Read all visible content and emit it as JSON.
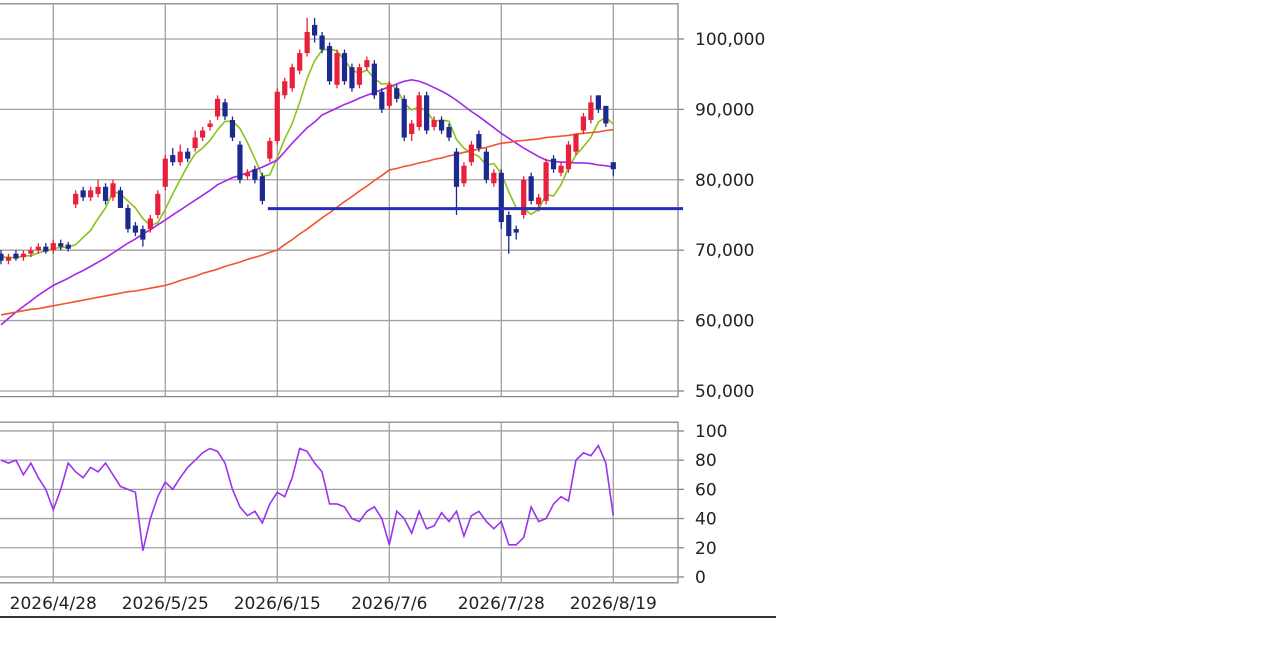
{
  "chart_data": [
    {
      "type": "candlestick",
      "categories": [
        null,
        null,
        null,
        null,
        null,
        null,
        null,
        "2026/4/28",
        null,
        null,
        null,
        null,
        null,
        null,
        null,
        null,
        null,
        null,
        null,
        null,
        null,
        null,
        "2026/5/25",
        null,
        null,
        null,
        null,
        null,
        null,
        null,
        null,
        null,
        null,
        null,
        null,
        null,
        null,
        "2026/6/15",
        null,
        null,
        null,
        null,
        null,
        null,
        null,
        null,
        null,
        null,
        null,
        null,
        null,
        null,
        "2026/7/6",
        null,
        null,
        null,
        null,
        null,
        null,
        null,
        null,
        null,
        null,
        null,
        null,
        null,
        null,
        "2026/7/28",
        null,
        null,
        null,
        null,
        null,
        null,
        null,
        null,
        null,
        null,
        null,
        null,
        null,
        null,
        "2026/8/19"
      ],
      "open": [
        69500,
        68500,
        69500,
        69000,
        69500,
        70000,
        70500,
        70000,
        71000,
        70800,
        76500,
        78500,
        77500,
        78000,
        79000,
        77500,
        78500,
        76000,
        73500,
        73000,
        73000,
        75000,
        79000,
        83500,
        82500,
        84000,
        84500,
        86000,
        87500,
        89000,
        91000,
        88500,
        85000,
        80500,
        81500,
        80500,
        83000,
        85500,
        92000,
        93000,
        95500,
        98000,
        102000,
        100500,
        99000,
        93500,
        98000,
        96000,
        93500,
        96000,
        96500,
        92500,
        90500,
        93000,
        91500,
        86500,
        87500,
        92000,
        87500,
        88500,
        87500,
        84000,
        79500,
        82500,
        86500,
        84000,
        79500,
        81000,
        75000,
        73000,
        75000,
        80500,
        76500,
        77000,
        83000,
        81000,
        81500,
        84000,
        87000,
        88500,
        92000,
        90500,
        82500
      ],
      "high": [
        70000,
        69500,
        70000,
        70000,
        70500,
        71000,
        71000,
        71500,
        71500,
        71200,
        78500,
        79000,
        79000,
        80000,
        79500,
        80000,
        79000,
        76500,
        74000,
        73500,
        75000,
        78500,
        83500,
        84500,
        85000,
        84500,
        87000,
        87500,
        88500,
        92000,
        91500,
        89000,
        85500,
        81500,
        82000,
        81000,
        86000,
        93000,
        94500,
        96500,
        98500,
        103000,
        103000,
        101000,
        99500,
        98500,
        98500,
        96500,
        96500,
        97500,
        97000,
        93000,
        94000,
        93500,
        92000,
        88500,
        92500,
        92500,
        89000,
        89000,
        88000,
        84500,
        82500,
        85500,
        87000,
        84500,
        81500,
        81500,
        75500,
        73500,
        80500,
        81000,
        78000,
        83000,
        83500,
        82500,
        85500,
        86500,
        89500,
        92000,
        92000,
        90500,
        82500
      ],
      "low": [
        68000,
        68000,
        68500,
        68500,
        69000,
        69500,
        69500,
        69500,
        70000,
        69800,
        76000,
        77000,
        77000,
        77500,
        76500,
        77000,
        76000,
        72500,
        72000,
        70500,
        72500,
        74500,
        78500,
        82000,
        82000,
        82500,
        84000,
        85500,
        87000,
        88500,
        88500,
        85500,
        79500,
        80000,
        79500,
        76500,
        82500,
        85000,
        91500,
        92500,
        95000,
        97500,
        99500,
        98000,
        93500,
        93000,
        93500,
        92500,
        93000,
        95500,
        91500,
        89500,
        90000,
        91000,
        85500,
        85500,
        87000,
        86500,
        87000,
        86500,
        85500,
        75000,
        79000,
        82000,
        84000,
        79500,
        79000,
        73000,
        69500,
        71500,
        74500,
        76500,
        75500,
        76500,
        81000,
        80500,
        81000,
        83500,
        86500,
        88000,
        89500,
        87500,
        80500
      ],
      "close": [
        68500,
        69000,
        68800,
        69500,
        70000,
        70500,
        69800,
        71000,
        70500,
        70200,
        78000,
        77500,
        78500,
        79000,
        77000,
        79500,
        76000,
        73000,
        72500,
        71500,
        74500,
        78000,
        83000,
        82500,
        84000,
        83000,
        86000,
        87000,
        88000,
        91500,
        89000,
        86000,
        80000,
        81000,
        80000,
        77000,
        85500,
        92500,
        94000,
        96000,
        98000,
        101000,
        100500,
        98500,
        94000,
        98000,
        94000,
        93000,
        96000,
        97000,
        92000,
        90000,
        93500,
        91500,
        86000,
        88000,
        92000,
        87000,
        88500,
        87000,
        86000,
        79000,
        82000,
        85000,
        84500,
        80000,
        81000,
        74000,
        72000,
        72500,
        80000,
        77000,
        77500,
        82500,
        81500,
        82000,
        85000,
        86500,
        89000,
        91000,
        90000,
        88000,
        81500
      ],
      "up_color": "#e8203c",
      "down_color": "#1b2a8c",
      "series": [
        {
          "color": "#8cc21c",
          "values": [
            69000,
            69000,
            68900,
            69200,
            69200,
            69600,
            69900,
            70200,
            70400,
            70400,
            70800,
            71800,
            72800,
            74500,
            76000,
            78300,
            78000,
            77000,
            76000,
            74500,
            73500,
            73900,
            75800,
            78000,
            80000,
            82000,
            83700,
            84500,
            85600,
            87100,
            88300,
            88300,
            87300,
            85300,
            83000,
            80500,
            80700,
            83200,
            85800,
            88000,
            91000,
            94400,
            96900,
            98400,
            98600,
            98300,
            97000,
            95600,
            95100,
            95600,
            94400,
            93600,
            93700,
            92900,
            90900,
            89900,
            90400,
            89700,
            88300,
            88500,
            88300,
            85700,
            84500,
            83800,
            83300,
            82100,
            82300,
            80900,
            78300,
            76000,
            75900,
            75100,
            75800,
            77900,
            77700,
            79300,
            81700,
            83500,
            84700,
            86000,
            88200,
            88900,
            87900
          ]
        },
        {
          "color": "#a526e8",
          "values": [
            59400,
            60300,
            61200,
            62000,
            62800,
            63600,
            64300,
            65000,
            65500,
            66000,
            66600,
            67100,
            67700,
            68300,
            68900,
            69600,
            70300,
            71000,
            71600,
            72300,
            72900,
            73600,
            74300,
            75000,
            75700,
            76400,
            77100,
            77800,
            78500,
            79300,
            79800,
            80300,
            80600,
            81000,
            81400,
            81800,
            82300,
            82800,
            84000,
            85200,
            86300,
            87400,
            88200,
            89200,
            89700,
            90200,
            90700,
            91100,
            91600,
            92000,
            92400,
            92800,
            93200,
            93600,
            94000,
            94200,
            94000,
            93600,
            93100,
            92600,
            92000,
            91300,
            90500,
            89700,
            89000,
            88200,
            87400,
            86600,
            85900,
            85200,
            84500,
            83900,
            83300,
            82800,
            82600,
            82500,
            82500,
            82400,
            82400,
            82300,
            82100,
            82000,
            81800
          ]
        },
        {
          "color": "#f0542a",
          "values": [
            60800,
            61000,
            61200,
            61400,
            61600,
            61700,
            61900,
            62100,
            62300,
            62500,
            62700,
            62900,
            63100,
            63300,
            63500,
            63700,
            63900,
            64100,
            64200,
            64400,
            64600,
            64800,
            65000,
            65300,
            65700,
            66000,
            66300,
            66700,
            67000,
            67300,
            67700,
            68000,
            68300,
            68700,
            69000,
            69300,
            69700,
            70000,
            70800,
            71500,
            72300,
            73000,
            73800,
            74600,
            75300,
            76100,
            76900,
            77600,
            78400,
            79100,
            79900,
            80600,
            81400,
            81600,
            81900,
            82100,
            82400,
            82600,
            82900,
            83100,
            83400,
            83600,
            83900,
            84100,
            84400,
            84600,
            84900,
            85200,
            85300,
            85500,
            85600,
            85700,
            85800,
            86000,
            86100,
            86200,
            86300,
            86500,
            86600,
            86700,
            86800,
            87000,
            87100
          ]
        }
      ],
      "support_line": {
        "value": 75900,
        "from_index": 36,
        "color": "#2230b8"
      },
      "ylim": [
        49200,
        105000
      ],
      "yticks": [
        {
          "value": 50000,
          "label": "50,000"
        },
        {
          "value": 60000,
          "label": "60,000"
        },
        {
          "value": 70000,
          "label": "70,000"
        },
        {
          "value": 80000,
          "label": "80,000"
        },
        {
          "value": 90000,
          "label": "90,000"
        },
        {
          "value": 100000,
          "label": "100,000"
        }
      ],
      "grid": true
    },
    {
      "type": "line",
      "color": "#9a33f0",
      "values": [
        80,
        78,
        80,
        70,
        78,
        68,
        60,
        46,
        60,
        78,
        72,
        68,
        75,
        72,
        78,
        70,
        62,
        60,
        58,
        18,
        40,
        55,
        65,
        60,
        68,
        75,
        80,
        85,
        88,
        86,
        78,
        60,
        48,
        42,
        45,
        37,
        50,
        58,
        55,
        68,
        88,
        86,
        78,
        72,
        50,
        50,
        48,
        40,
        38,
        45,
        48,
        40,
        22,
        45,
        40,
        30,
        45,
        33,
        35,
        44,
        38,
        45,
        28,
        42,
        45,
        38,
        33,
        38,
        22,
        22,
        27,
        48,
        38,
        40,
        50,
        55,
        52,
        80,
        85,
        83,
        90,
        78,
        42
      ],
      "ylim": [
        -4,
        106
      ],
      "yticks": [
        0,
        20,
        40,
        60,
        80,
        100
      ],
      "grid": true
    }
  ]
}
